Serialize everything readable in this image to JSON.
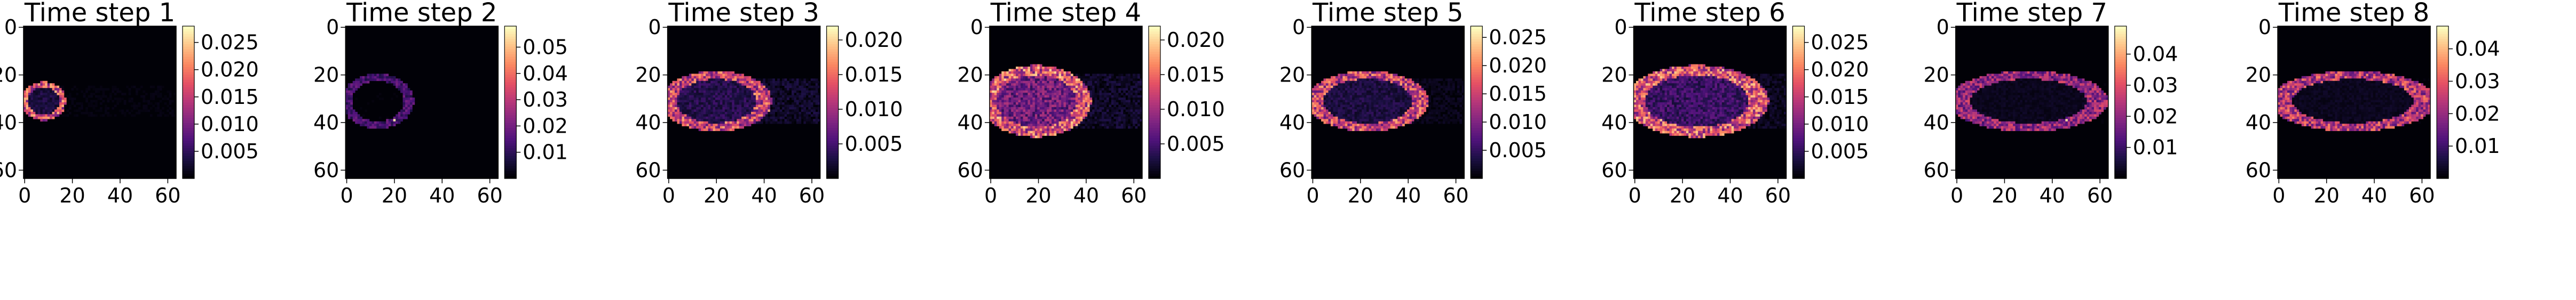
{
  "chart_data": [
    {
      "type": "heatmap",
      "title": "Time step 1",
      "xticks": [
        0,
        20,
        40,
        60
      ],
      "yticks": [
        0,
        20,
        40,
        60
      ],
      "colorbar": {
        "min": 0,
        "max": 0.028,
        "ticks": [
          "0.005",
          "0.010",
          "0.015",
          "0.020",
          "0.025"
        ]
      },
      "ring": {
        "cx": 8,
        "cy": 31,
        "rx": 8,
        "ry": 7,
        "peak": 0.024,
        "interior": 0.004,
        "trail": 0.001
      }
    },
    {
      "type": "heatmap",
      "title": "Time step 2",
      "xticks": [
        0,
        20,
        40,
        60
      ],
      "yticks": [
        0,
        20,
        40,
        60
      ],
      "colorbar": {
        "min": 0,
        "max": 0.058,
        "ticks": [
          "0.01",
          "0.02",
          "0.03",
          "0.04",
          "0.05"
        ]
      },
      "ring": {
        "cx": 13,
        "cy": 31,
        "rx": 13,
        "ry": 10,
        "peak": 0.02,
        "interior": 0.001,
        "trail": 0.0005,
        "hotspot": 0.055
      }
    },
    {
      "type": "heatmap",
      "title": "Time step 3",
      "xticks": [
        0,
        20,
        40,
        60
      ],
      "yticks": [
        0,
        20,
        40,
        60
      ],
      "colorbar": {
        "min": 0,
        "max": 0.022,
        "ticks": [
          "0.005",
          "0.010",
          "0.015",
          "0.020"
        ]
      },
      "ring": {
        "cx": 20,
        "cy": 31,
        "rx": 20,
        "ry": 11,
        "peak": 0.018,
        "interior": 0.004,
        "trail": 0.003
      }
    },
    {
      "type": "heatmap",
      "title": "Time step 4",
      "xticks": [
        0,
        20,
        40,
        60
      ],
      "yticks": [
        0,
        20,
        40,
        60
      ],
      "colorbar": {
        "min": 0,
        "max": 0.022,
        "ticks": [
          "0.005",
          "0.010",
          "0.015",
          "0.020"
        ]
      },
      "ring": {
        "cx": 19,
        "cy": 31,
        "rx": 20,
        "ry": 13,
        "peak": 0.02,
        "interior": 0.009,
        "trail": 0.003
      }
    },
    {
      "type": "heatmap",
      "title": "Time step 5",
      "xticks": [
        0,
        20,
        40,
        60
      ],
      "yticks": [
        0,
        20,
        40,
        60
      ],
      "colorbar": {
        "min": 0,
        "max": 0.027,
        "ticks": [
          "0.005",
          "0.010",
          "0.015",
          "0.020",
          "0.025"
        ]
      },
      "ring": {
        "cx": 23,
        "cy": 31,
        "rx": 22,
        "ry": 11,
        "peak": 0.022,
        "interior": 0.004,
        "trail": 0.002
      }
    },
    {
      "type": "heatmap",
      "title": "Time step 6",
      "xticks": [
        0,
        20,
        40,
        60
      ],
      "yticks": [
        0,
        20,
        40,
        60
      ],
      "colorbar": {
        "min": 0,
        "max": 0.028,
        "ticks": [
          "0.005",
          "0.010",
          "0.015",
          "0.020",
          "0.025"
        ]
      },
      "ring": {
        "cx": 26,
        "cy": 31,
        "rx": 26,
        "ry": 13,
        "peak": 0.025,
        "interior": 0.007,
        "trail": 0.003
      }
    },
    {
      "type": "heatmap",
      "title": "Time step 7",
      "xticks": [
        0,
        20,
        40,
        60
      ],
      "yticks": [
        0,
        20,
        40,
        60
      ],
      "colorbar": {
        "min": 0,
        "max": 0.049,
        "ticks": [
          "0.01",
          "0.02",
          "0.03",
          "0.04"
        ]
      },
      "ring": {
        "cx": 30,
        "cy": 31,
        "rx": 29,
        "ry": 11,
        "peak": 0.03,
        "interior": 0.003,
        "trail": 0.001,
        "hotspot": 0.045
      }
    },
    {
      "type": "heatmap",
      "title": "Time step 8",
      "xticks": [
        0,
        20,
        40,
        60
      ],
      "yticks": [
        0,
        20,
        40,
        60
      ],
      "colorbar": {
        "min": 0,
        "max": 0.047,
        "ticks": [
          "0.01",
          "0.02",
          "0.03",
          "0.04"
        ]
      },
      "ring": {
        "cx": 31,
        "cy": 31,
        "rx": 30,
        "ry": 11,
        "peak": 0.035,
        "interior": 0.003,
        "trail": 0.001
      }
    }
  ],
  "colormap": "magma"
}
